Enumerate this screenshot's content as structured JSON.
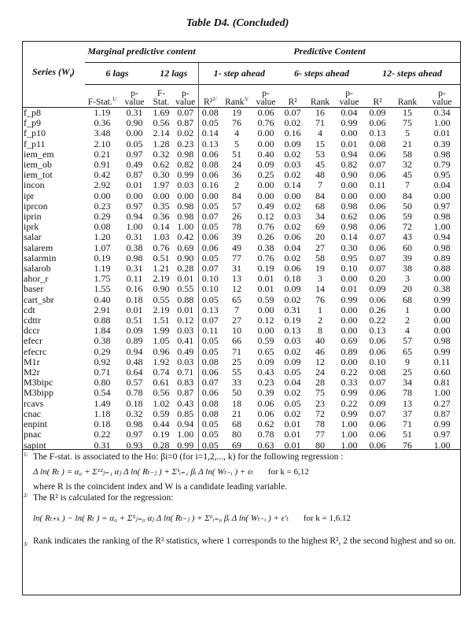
{
  "title": "Table D4. (Concluded)",
  "header": {
    "series": "Series (W",
    "series_sub": "t",
    "series_close": ")",
    "marginal": "Marginal predictive content",
    "predictive": "Predictive Content",
    "lags6": "6 lags",
    "lags12": "12 lags",
    "step1": "1- step ahead",
    "step6": "6- steps ahead",
    "step12": "12- steps ahead",
    "cols": [
      "F-Stat.",
      "p-\nvalue",
      "F-\nStat.",
      "p-\nvalue",
      "R²",
      "Rank",
      "p-\nvalue",
      "R²",
      "Rank",
      "p-\nvalue",
      "R²",
      "Rank",
      "p-\nvalue"
    ],
    "col_marks": {
      "0": "1/",
      "4": "2/",
      "5": "3/"
    }
  },
  "rows": [
    [
      "f_p8",
      "1.19",
      "0.31",
      "1.69",
      "0.07",
      "0.08",
      "19",
      "0.06",
      "0.07",
      "16",
      "0.04",
      "0.09",
      "15",
      "0.34"
    ],
    [
      "f_p9",
      "0.36",
      "0.90",
      "0.56",
      "0.87",
      "0.05",
      "76",
      "0.76",
      "0.02",
      "71",
      "0.99",
      "0.06",
      "75",
      "1.00"
    ],
    [
      "f_p10",
      "3.48",
      "0.00",
      "2.14",
      "0.02",
      "0.14",
      "4",
      "0.00",
      "0.16",
      "4",
      "0.00",
      "0.13",
      "5",
      "0.01"
    ],
    [
      "f_p11",
      "2.10",
      "0.05",
      "1.28",
      "0.23",
      "0.13",
      "5",
      "0.00",
      "0.09",
      "15",
      "0.01",
      "0.08",
      "21",
      "0.39"
    ],
    [
      "iem_em",
      "0.21",
      "0.97",
      "0.32",
      "0.98",
      "0.06",
      "51",
      "0.40",
      "0.02",
      "53",
      "0.94",
      "0.06",
      "58",
      "0.98"
    ],
    [
      "iem_ob",
      "0.91",
      "0.49",
      "0.62",
      "0.82",
      "0.08",
      "24",
      "0.09",
      "0.03",
      "45",
      "0.82",
      "0.07",
      "32",
      "0.79"
    ],
    [
      "iem_tot",
      "0.42",
      "0.87",
      "0.30",
      "0.99",
      "0.06",
      "36",
      "0.25",
      "0.02",
      "48",
      "0.90",
      "0.06",
      "45",
      "0.95"
    ],
    [
      "incon",
      "2.92",
      "0.01",
      "1.97",
      "0.03",
      "0.16",
      "2",
      "0.00",
      "0.14",
      "7",
      "0.00",
      "0.11",
      "7",
      "0.04"
    ],
    [
      "ipr",
      "0.00",
      "0.00",
      "0.00",
      "0.00",
      "0.00",
      "84",
      "0.00",
      "0.00",
      "84",
      "0.00",
      "0.00",
      "84",
      "0.00"
    ],
    [
      "iprcon",
      "0.23",
      "0.97",
      "0.35",
      "0.98",
      "0.05",
      "57",
      "0.49",
      "0.02",
      "68",
      "0.98",
      "0.06",
      "50",
      "0.97"
    ],
    [
      "iprin",
      "0.29",
      "0.94",
      "0.36",
      "0.98",
      "0.07",
      "26",
      "0.12",
      "0.03",
      "34",
      "0.62",
      "0.06",
      "59",
      "0.98"
    ],
    [
      "iprk",
      "0.08",
      "1.00",
      "0.14",
      "1.00",
      "0.05",
      "78",
      "0.76",
      "0.02",
      "69",
      "0.98",
      "0.06",
      "72",
      "1.00"
    ],
    [
      "salar",
      "1.20",
      "0.31",
      "1.03",
      "0.42",
      "0.06",
      "39",
      "0.26",
      "0.06",
      "20",
      "0.14",
      "0.07",
      "43",
      "0.94"
    ],
    [
      "salarem",
      "1.07",
      "0.38",
      "0.76",
      "0.69",
      "0.06",
      "49",
      "0.38",
      "0.04",
      "27",
      "0.30",
      "0.06",
      "60",
      "0.98"
    ],
    [
      "salarmin",
      "0.19",
      "0.98",
      "0.51",
      "0.90",
      "0.05",
      "77",
      "0.76",
      "0.02",
      "58",
      "0.95",
      "0.07",
      "39",
      "0.89"
    ],
    [
      "salarob",
      "1.19",
      "0.31",
      "1.21",
      "0.28",
      "0.07",
      "31",
      "0.19",
      "0.06",
      "19",
      "0.10",
      "0.07",
      "38",
      "0.88"
    ],
    [
      "ahor_r",
      "1.75",
      "0.11",
      "2.19",
      "0.01",
      "0.10",
      "13",
      "0.01",
      "0.18",
      "3",
      "0.00",
      "0.20",
      "3",
      "0.00"
    ],
    [
      "baser",
      "1.55",
      "0.16",
      "0.90",
      "0.55",
      "0.10",
      "12",
      "0.01",
      "0.09",
      "14",
      "0.01",
      "0.09",
      "20",
      "0.38"
    ],
    [
      "cart_sbr",
      "0.40",
      "0.18",
      "0.55",
      "0.88",
      "0.05",
      "65",
      "0.59",
      "0.02",
      "76",
      "0.99",
      "0.06",
      "68",
      "0.99"
    ],
    [
      "cdt",
      "2.91",
      "0.01",
      "2.19",
      "0.01",
      "0.13",
      "7",
      "0.00",
      "0.31",
      "1",
      "0.00",
      "0.26",
      "1",
      "0.00"
    ],
    [
      "cdttr",
      "0.88",
      "0.51",
      "1.51",
      "0.12",
      "0.07",
      "27",
      "0.12",
      "0.19",
      "2",
      "0.00",
      "0.22",
      "2",
      "0.00"
    ],
    [
      "dccr",
      "1.84",
      "0.09",
      "1.99",
      "0.03",
      "0.11",
      "10",
      "0.00",
      "0.13",
      "8",
      "0.00",
      "0.13",
      "4",
      "0.00"
    ],
    [
      "efecr",
      "0.38",
      "0.89",
      "1.05",
      "0.41",
      "0.05",
      "66",
      "0.59",
      "0.03",
      "40",
      "0.69",
      "0.06",
      "57",
      "0.98"
    ],
    [
      "efecrc",
      "0.29",
      "0.94",
      "0.96",
      "0.49",
      "0.05",
      "71",
      "0.65",
      "0.02",
      "46",
      "0.89",
      "0.06",
      "65",
      "0.99"
    ],
    [
      "M1r",
      "0.92",
      "0.48",
      "1.92",
      "0.03",
      "0.08",
      "25",
      "0.09",
      "0.09",
      "12",
      "0.00",
      "0.10",
      "9",
      "0.11"
    ],
    [
      "M2r",
      "0.71",
      "0.64",
      "0.74",
      "0.71",
      "0.06",
      "55",
      "0.43",
      "0.05",
      "24",
      "0.22",
      "0.08",
      "25",
      "0.60"
    ],
    [
      "M3bipc",
      "0.80",
      "0.57",
      "0.61",
      "0.83",
      "0.07",
      "33",
      "0.23",
      "0.04",
      "28",
      "0.33",
      "0.07",
      "34",
      "0.81"
    ],
    [
      "M3bipp",
      "0.54",
      "0.78",
      "0.56",
      "0.87",
      "0.06",
      "50",
      "0.39",
      "0.02",
      "75",
      "0.99",
      "0.06",
      "78",
      "1.00"
    ],
    [
      "rcavs",
      "1.49",
      "0.18",
      "1.02",
      "0.43",
      "0.08",
      "18",
      "0.06",
      "0.05",
      "23",
      "0.22",
      "0.09",
      "13",
      "0.27"
    ],
    [
      "cnac",
      "1.18",
      "0.32",
      "0.59",
      "0.85",
      "0.08",
      "21",
      "0.06",
      "0.02",
      "72",
      "0.99",
      "0.07",
      "37",
      "0.87"
    ],
    [
      "enpint",
      "0.18",
      "0.98",
      "0.44",
      "0.94",
      "0.05",
      "68",
      "0.62",
      "0.01",
      "78",
      "1.00",
      "0.06",
      "71",
      "0.99"
    ],
    [
      "pnac",
      "0.22",
      "0.97",
      "0.19",
      "1.00",
      "0.05",
      "80",
      "0.78",
      "0.01",
      "77",
      "1.00",
      "0.06",
      "51",
      "0.97"
    ],
    [
      "sapint",
      "0.31",
      "0.93",
      "0.28",
      "0.99",
      "0.05",
      "69",
      "0.63",
      "0.01",
      "80",
      "1.00",
      "0.06",
      "76",
      "1.00"
    ]
  ],
  "notes": {
    "n1_mark": "1/",
    "n1_text": "The F-stat. is associated to the Ho: βi=0 (for i=1,2,..., k) for the following regression :",
    "n1_formula": "Δ ln( Rₜ ) = α₀ + Σ¹²ⱼ₌₁ αⱼ Δ ln( Rₜ₋ⱼ ) + Σᵏᵢ₌₁ βᵢ Δ ln( Wₜ₋ᵢ ) + εₜ",
    "n1_for": "for k = 6,12",
    "n1_where": "where R is the coincident index and W is a candidate leading variable.",
    "n2_mark": "2/",
    "n2_text": "The R² is calculated for the regression:",
    "n2_formula": "ln( Rₜ₊ₖ ) − ln( Rₜ ) = α₀ + Σ⁵ⱼ₌₀ αⱼ Δ ln( Rₜ₋ⱼ ) + Σ⁶ᵢ₌₀ βᵢ Δ ln( Wₜ₋ᵢ ) + ε′ₜ",
    "n2_for": "for k = 1,6.12",
    "n3_mark": "3/",
    "n3_text": "Rank indicates the ranking of the R² statistics, where 1 corresponds to the highest R², 2 the second highest and so on."
  }
}
